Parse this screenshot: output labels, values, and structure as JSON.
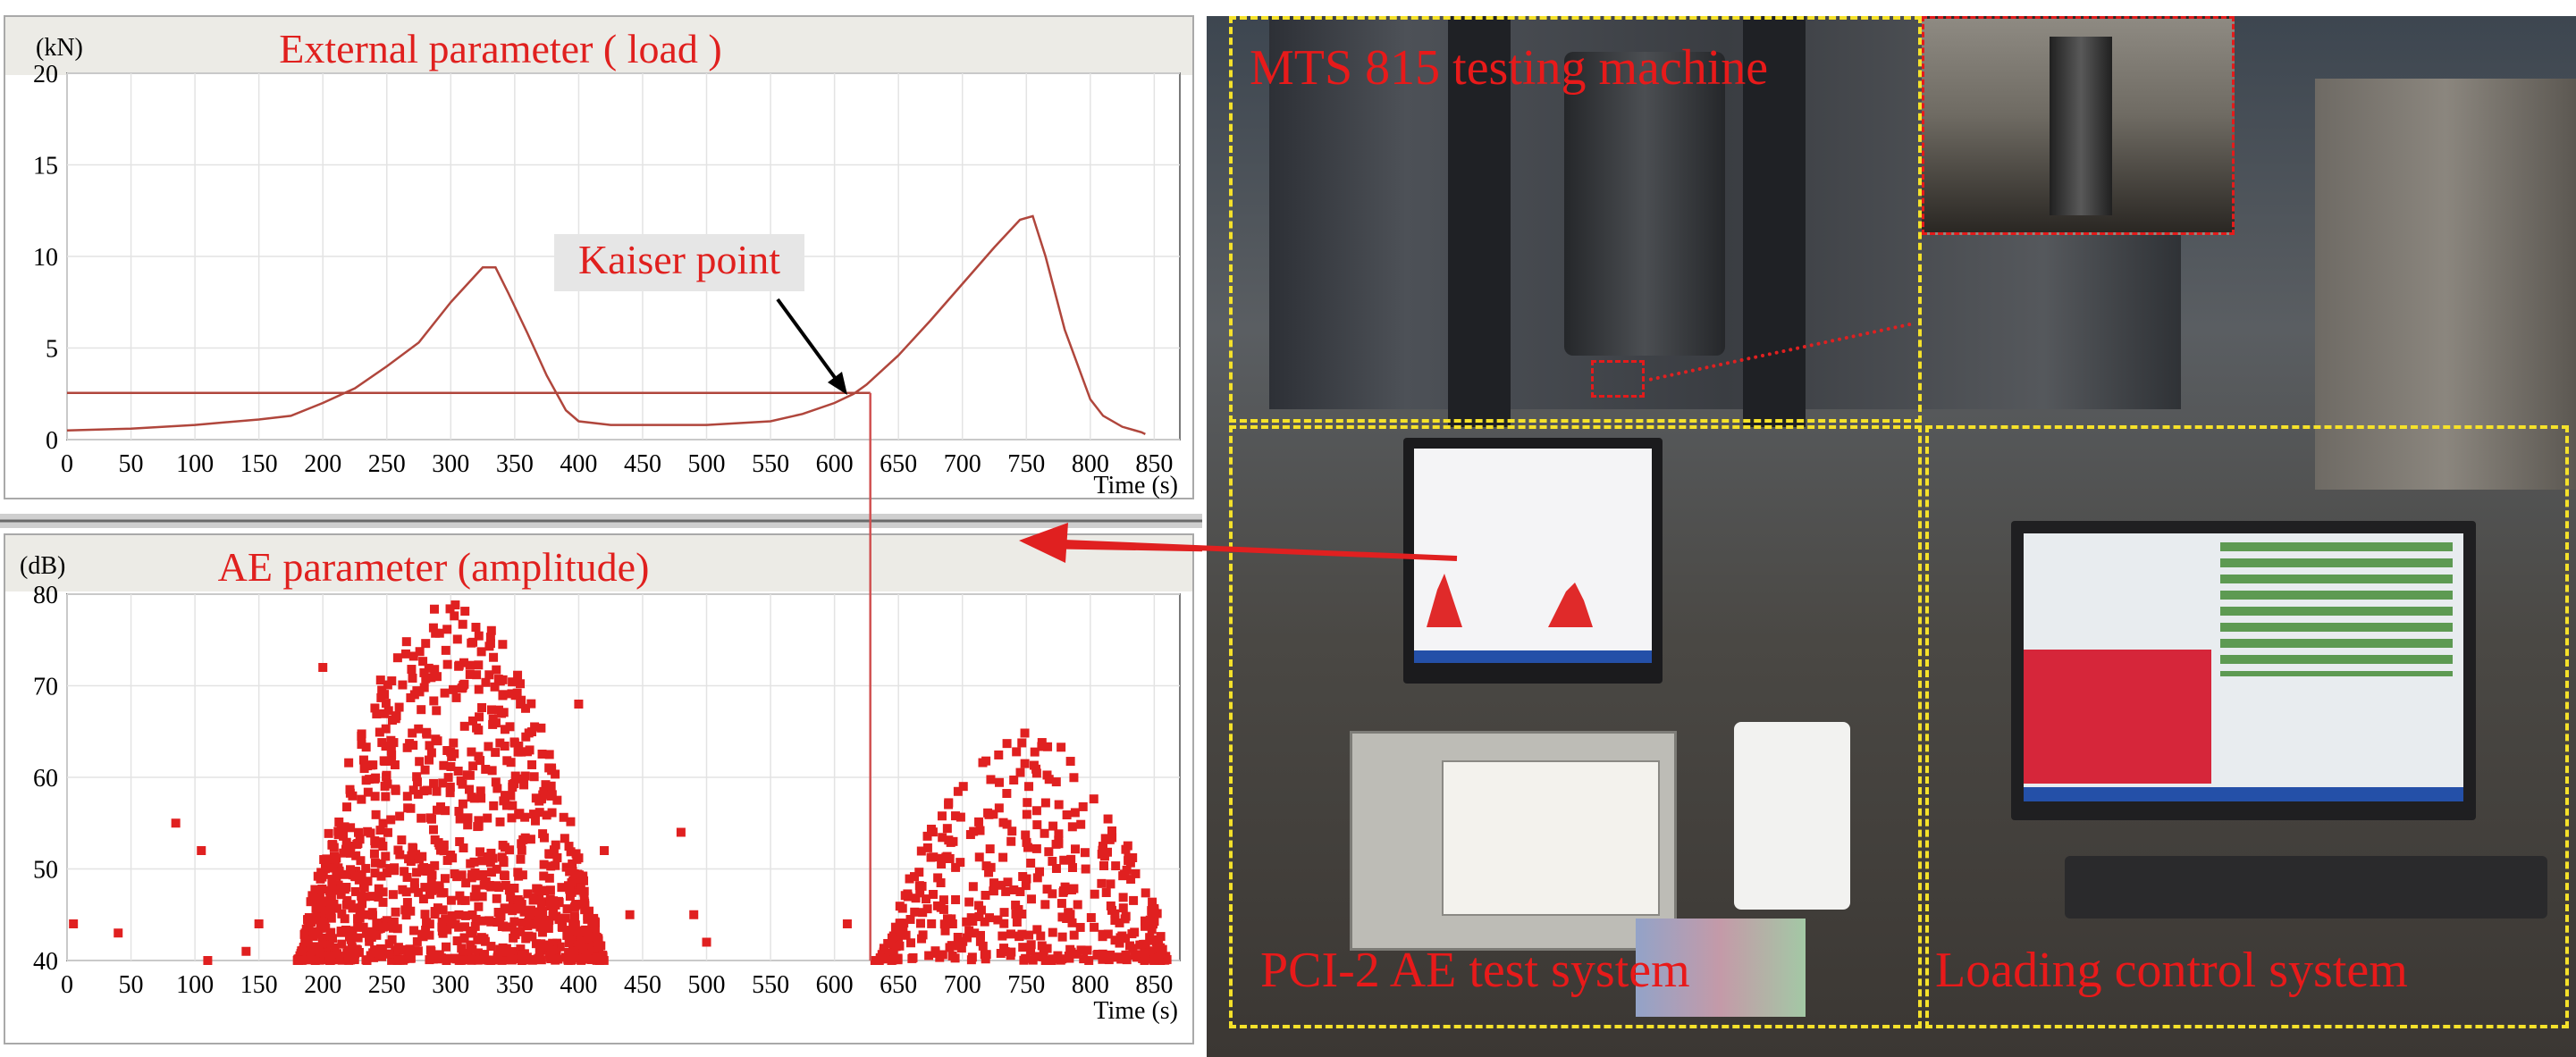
{
  "load_panel": {
    "title": "External parameter ( load )",
    "unit": "(kN)",
    "time_label": "Time (s)",
    "annotation": "Kaiser point"
  },
  "ae_panel": {
    "title": "AE parameter (amplitude)",
    "unit": "(dB)",
    "time_label": "Time (s)"
  },
  "photo_labels": {
    "mts": "MTS 815 testing machine",
    "pci": "PCI-2 AE test system",
    "loading": "Loading control system"
  },
  "colors": {
    "curve": "#b0463c",
    "marker": "#e02020",
    "label_red": "#e81a1a",
    "dashed_box": "#f5e12a"
  },
  "chart_data": [
    {
      "type": "line",
      "title": "External parameter ( load )",
      "xlabel": "Time (s)",
      "ylabel": "(kN)",
      "xlim": [
        0,
        870
      ],
      "ylim": [
        0,
        20
      ],
      "xticks": [
        0,
        50,
        100,
        150,
        200,
        250,
        300,
        350,
        400,
        450,
        500,
        550,
        600,
        650,
        700,
        750,
        800,
        850
      ],
      "yticks": [
        0,
        5,
        10,
        15,
        20
      ],
      "grid": true,
      "series": [
        {
          "x": [
            0,
            50,
            100,
            150,
            175,
            200,
            225,
            250,
            275,
            300,
            325,
            335,
            345,
            360,
            375,
            390,
            400,
            425,
            450,
            500,
            550,
            575,
            600,
            615,
            625,
            650,
            675,
            700,
            725,
            745,
            755,
            765,
            780,
            800,
            810,
            825,
            835,
            840,
            843
          ],
          "y": [
            0.5,
            0.6,
            0.8,
            1.1,
            1.3,
            2.0,
            2.8,
            4.0,
            5.3,
            7.5,
            9.4,
            9.4,
            8.0,
            5.8,
            3.5,
            1.6,
            1.0,
            0.8,
            0.8,
            0.8,
            1.0,
            1.4,
            2.0,
            2.5,
            3.0,
            4.6,
            6.5,
            8.5,
            10.5,
            12.0,
            12.2,
            10.0,
            6.0,
            2.2,
            1.3,
            0.7,
            0.5,
            0.4,
            0.3
          ]
        }
      ],
      "reference_line": {
        "y": 2.55,
        "x_end": 628
      },
      "kaiser_point": {
        "x": 628,
        "y": 2.55
      }
    },
    {
      "type": "scatter",
      "title": "AE parameter (amplitude)",
      "xlabel": "Time (s)",
      "ylabel": "(dB)",
      "xlim": [
        0,
        870
      ],
      "ylim": [
        40,
        80
      ],
      "xticks": [
        0,
        50,
        100,
        150,
        200,
        250,
        300,
        350,
        400,
        450,
        500,
        550,
        600,
        650,
        700,
        750,
        800,
        850
      ],
      "yticks": [
        40,
        50,
        60,
        70,
        80
      ],
      "grid": true,
      "clusters": [
        {
          "x_range": [
            180,
            420
          ],
          "center": 300,
          "peak_db": 79,
          "count": 1100
        },
        {
          "x_range": [
            630,
            860
          ],
          "center": 750,
          "peak_db": 65,
          "count": 420
        }
      ],
      "isolated_points": [
        [
          5,
          44
        ],
        [
          40,
          43
        ],
        [
          85,
          55
        ],
        [
          105,
          52
        ],
        [
          110,
          40
        ],
        [
          140,
          41
        ],
        [
          150,
          44
        ],
        [
          200,
          72
        ],
        [
          400,
          68
        ],
        [
          420,
          52
        ],
        [
          440,
          45
        ],
        [
          480,
          54
        ],
        [
          490,
          45
        ],
        [
          500,
          42
        ],
        [
          610,
          44
        ]
      ]
    }
  ]
}
